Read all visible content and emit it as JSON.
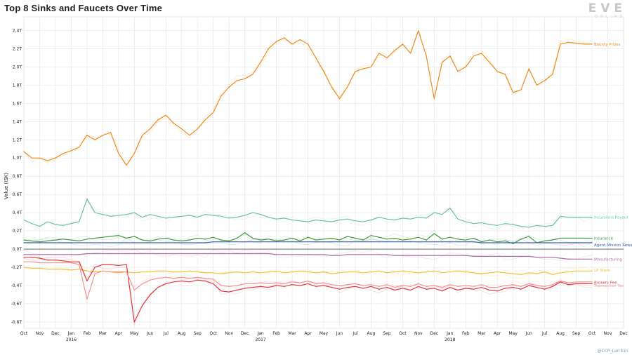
{
  "chart_data": {
    "type": "line",
    "title": "Top 8 Sinks and Faucets Over Time",
    "ylabel": "Value (ISK)",
    "xlabel": "",
    "ylim": [
      -0.87,
      2.55
    ],
    "yticks": [
      {
        "v": 2.4,
        "label": "2.4T"
      },
      {
        "v": 2.2,
        "label": "2.2T"
      },
      {
        "v": 2.0,
        "label": "2.0T"
      },
      {
        "v": 1.8,
        "label": "1.8T"
      },
      {
        "v": 1.6,
        "label": "1.6T"
      },
      {
        "v": 1.4,
        "label": "1.4T"
      },
      {
        "v": 1.2,
        "label": "1.2T"
      },
      {
        "v": 1.0,
        "label": "1.0T"
      },
      {
        "v": 0.8,
        "label": "0.8T"
      },
      {
        "v": 0.6,
        "label": "0.6T"
      },
      {
        "v": 0.4,
        "label": "0.4T"
      },
      {
        "v": 0.2,
        "label": "0.2T"
      },
      {
        "v": 0.0,
        "label": "0.0T"
      },
      {
        "v": -0.2,
        "label": "-0.2T"
      },
      {
        "v": -0.4,
        "label": "-0.4T"
      },
      {
        "v": -0.6,
        "label": "-0.6T"
      },
      {
        "v": -0.8,
        "label": "-0.8T"
      }
    ],
    "xticks": [
      "Oct",
      "Nov",
      "Dec",
      "Jan",
      "Feb",
      "Mar",
      "Apr",
      "May",
      "Jun",
      "Jul",
      "Aug",
      "Sep",
      "Oct",
      "Nov",
      "Dec",
      "Jan",
      "Feb",
      "Mar",
      "Apr",
      "May",
      "Jun",
      "Jul",
      "Aug",
      "Sep",
      "Oct",
      "Nov",
      "Dec",
      "Jan",
      "Feb",
      "Mar",
      "Apr",
      "May",
      "Jun",
      "Jul",
      "Aug",
      "Sep",
      "Oct",
      "Nov",
      "Dec"
    ],
    "year_labels": [
      {
        "month_index": 3,
        "label": "2016"
      },
      {
        "month_index": 15,
        "label": "2017"
      },
      {
        "month_index": 27,
        "label": "2018"
      }
    ],
    "grid": true,
    "x_months": [
      0,
      0.5,
      1,
      1.5,
      2,
      2.5,
      3,
      3.5,
      4,
      4.5,
      5,
      5.5,
      6,
      6.5,
      7,
      7.5,
      8,
      8.5,
      9,
      9.5,
      10,
      10.5,
      11,
      11.5,
      12,
      12.5,
      13,
      13.5,
      14,
      14.5,
      15,
      15.5,
      16,
      16.5,
      17,
      17.5,
      18,
      18.5,
      19,
      19.5,
      20,
      20.5,
      21,
      21.5,
      22,
      22.5,
      23,
      23.5,
      24,
      24.5,
      25,
      25.5,
      26,
      26.5,
      27,
      27.5,
      28,
      28.5,
      29,
      29.5,
      30,
      30.5,
      31,
      31.5,
      32,
      32.5,
      33,
      33.5,
      34,
      34.5,
      35,
      35.5,
      36
    ],
    "series": [
      {
        "name": "Bounty Prizes",
        "color": "#f08a1c",
        "values": [
          1.07,
          1.0,
          1.0,
          0.97,
          1.0,
          1.05,
          1.08,
          1.12,
          1.25,
          1.2,
          1.25,
          1.28,
          1.05,
          0.92,
          1.05,
          1.25,
          1.32,
          1.42,
          1.47,
          1.38,
          1.32,
          1.25,
          1.32,
          1.42,
          1.5,
          1.68,
          1.78,
          1.85,
          1.87,
          1.92,
          2.05,
          2.2,
          2.28,
          2.32,
          2.25,
          2.3,
          2.25,
          2.1,
          1.95,
          1.78,
          1.65,
          1.78,
          1.95,
          1.98,
          2.0,
          2.15,
          2.1,
          2.18,
          2.25,
          2.15,
          2.4,
          2.12,
          1.65,
          2.05,
          2.12,
          1.95,
          2.0,
          2.12,
          2.15,
          2.05,
          1.95,
          1.92,
          1.72,
          1.75,
          1.98,
          1.8,
          1.85,
          1.92,
          2.25,
          2.27,
          2.26,
          2.25,
          2.25
        ]
      },
      {
        "name": "Incursions Payout",
        "color": "#6bbfb3",
        "values": [
          0.32,
          0.28,
          0.25,
          0.3,
          0.27,
          0.26,
          0.28,
          0.3,
          0.55,
          0.4,
          0.38,
          0.36,
          0.37,
          0.38,
          0.4,
          0.35,
          0.38,
          0.36,
          0.34,
          0.35,
          0.36,
          0.37,
          0.35,
          0.38,
          0.37,
          0.36,
          0.34,
          0.35,
          0.37,
          0.4,
          0.38,
          0.35,
          0.33,
          0.34,
          0.32,
          0.31,
          0.3,
          0.32,
          0.31,
          0.3,
          0.32,
          0.33,
          0.31,
          0.3,
          0.32,
          0.35,
          0.33,
          0.32,
          0.34,
          0.33,
          0.35,
          0.34,
          0.4,
          0.38,
          0.45,
          0.33,
          0.3,
          0.28,
          0.29,
          0.27,
          0.26,
          0.28,
          0.27,
          0.25,
          0.24,
          0.26,
          0.25,
          0.26,
          0.36,
          0.35,
          0.35,
          0.35,
          0.35
        ]
      },
      {
        "name": "Insurance",
        "color": "#3f9e3f",
        "values": [
          0.1,
          0.09,
          0.08,
          0.09,
          0.1,
          0.11,
          0.1,
          0.09,
          0.11,
          0.12,
          0.13,
          0.14,
          0.15,
          0.12,
          0.14,
          0.1,
          0.09,
          0.11,
          0.12,
          0.1,
          0.09,
          0.1,
          0.12,
          0.11,
          0.13,
          0.1,
          0.09,
          0.12,
          0.18,
          0.12,
          0.1,
          0.11,
          0.09,
          0.1,
          0.12,
          0.09,
          0.13,
          0.1,
          0.11,
          0.12,
          0.1,
          0.14,
          0.12,
          0.1,
          0.15,
          0.13,
          0.11,
          0.12,
          0.1,
          0.11,
          0.13,
          0.1,
          0.17,
          0.11,
          0.13,
          0.11,
          0.1,
          0.12,
          0.08,
          0.1,
          0.08,
          0.09,
          0.06,
          0.11,
          0.14,
          0.07,
          0.09,
          0.1,
          0.12,
          0.12,
          0.12,
          0.12,
          0.12
        ]
      },
      {
        "name": "Agent Mission Rewards",
        "color": "#3a5ea8",
        "values": [
          0.07,
          0.07,
          0.07,
          0.07,
          0.07,
          0.07,
          0.07,
          0.07,
          0.07,
          0.07,
          0.07,
          0.07,
          0.07,
          0.07,
          0.07,
          0.07,
          0.07,
          0.07,
          0.07,
          0.07,
          0.07,
          0.07,
          0.07,
          0.07,
          0.08,
          0.08,
          0.08,
          0.08,
          0.08,
          0.08,
          0.08,
          0.08,
          0.08,
          0.08,
          0.08,
          0.08,
          0.08,
          0.08,
          0.08,
          0.08,
          0.08,
          0.08,
          0.08,
          0.08,
          0.08,
          0.08,
          0.08,
          0.08,
          0.08,
          0.08,
          0.08,
          0.08,
          0.08,
          0.08,
          0.08,
          0.08,
          0.08,
          0.08,
          0.07,
          0.07,
          0.07,
          0.07,
          0.07,
          0.07,
          0.07,
          0.07,
          0.07,
          0.07,
          0.07,
          0.07,
          0.07,
          0.07,
          0.07
        ]
      },
      {
        "name": "Manufacturing",
        "color": "#b06aa8",
        "values": [
          -0.06,
          -0.06,
          -0.06,
          -0.06,
          -0.06,
          -0.06,
          -0.06,
          -0.06,
          -0.05,
          -0.05,
          -0.05,
          -0.05,
          -0.05,
          -0.05,
          -0.05,
          -0.05,
          -0.05,
          -0.05,
          -0.05,
          -0.05,
          -0.05,
          -0.05,
          -0.05,
          -0.05,
          -0.05,
          -0.05,
          -0.05,
          -0.05,
          -0.05,
          -0.05,
          -0.05,
          -0.05,
          -0.06,
          -0.06,
          -0.06,
          -0.06,
          -0.06,
          -0.06,
          -0.06,
          -0.07,
          -0.07,
          -0.06,
          -0.06,
          -0.06,
          -0.06,
          -0.06,
          -0.06,
          -0.07,
          -0.07,
          -0.07,
          -0.07,
          -0.07,
          -0.07,
          -0.07,
          -0.07,
          -0.07,
          -0.07,
          -0.08,
          -0.08,
          -0.08,
          -0.08,
          -0.08,
          -0.08,
          -0.08,
          -0.08,
          -0.09,
          -0.09,
          -0.09,
          -0.1,
          -0.11,
          -0.11,
          -0.11,
          -0.11
        ]
      },
      {
        "name": "LP Store",
        "color": "#f0c23a",
        "values": [
          -0.2,
          -0.21,
          -0.21,
          -0.22,
          -0.22,
          -0.22,
          -0.23,
          -0.22,
          -0.24,
          -0.25,
          -0.24,
          -0.25,
          -0.26,
          -0.25,
          -0.26,
          -0.25,
          -0.25,
          -0.24,
          -0.24,
          -0.25,
          -0.25,
          -0.24,
          -0.25,
          -0.26,
          -0.26,
          -0.27,
          -0.26,
          -0.25,
          -0.26,
          -0.25,
          -0.26,
          -0.25,
          -0.24,
          -0.26,
          -0.25,
          -0.24,
          -0.25,
          -0.26,
          -0.25,
          -0.27,
          -0.26,
          -0.25,
          -0.25,
          -0.26,
          -0.25,
          -0.24,
          -0.26,
          -0.25,
          -0.24,
          -0.25,
          -0.26,
          -0.25,
          -0.24,
          -0.26,
          -0.25,
          -0.24,
          -0.25,
          -0.26,
          -0.27,
          -0.26,
          -0.25,
          -0.26,
          -0.27,
          -0.28,
          -0.26,
          -0.27,
          -0.25,
          -0.28,
          -0.26,
          -0.25,
          -0.24,
          -0.24,
          -0.24
        ]
      },
      {
        "name": "Brokers Fee",
        "color": "#e0393c",
        "values": [
          -0.09,
          -0.09,
          -0.1,
          -0.12,
          -0.12,
          -0.13,
          -0.14,
          -0.14,
          -0.35,
          -0.2,
          -0.17,
          -0.17,
          -0.18,
          -0.17,
          -0.8,
          -0.62,
          -0.5,
          -0.42,
          -0.38,
          -0.36,
          -0.35,
          -0.36,
          -0.34,
          -0.35,
          -0.38,
          -0.46,
          -0.47,
          -0.45,
          -0.43,
          -0.42,
          -0.41,
          -0.42,
          -0.4,
          -0.41,
          -0.39,
          -0.4,
          -0.38,
          -0.41,
          -0.4,
          -0.42,
          -0.44,
          -0.42,
          -0.41,
          -0.43,
          -0.41,
          -0.44,
          -0.42,
          -0.45,
          -0.43,
          -0.45,
          -0.41,
          -0.44,
          -0.43,
          -0.46,
          -0.42,
          -0.45,
          -0.43,
          -0.44,
          -0.42,
          -0.45,
          -0.46,
          -0.43,
          -0.42,
          -0.44,
          -0.4,
          -0.42,
          -0.44,
          -0.41,
          -0.36,
          -0.39,
          -0.38,
          -0.38,
          -0.38
        ]
      },
      {
        "name": "Transaction Tax",
        "color": "#f59393",
        "values": [
          -0.14,
          -0.14,
          -0.15,
          -0.15,
          -0.15,
          -0.15,
          -0.15,
          -0.17,
          -0.55,
          -0.27,
          -0.24,
          -0.25,
          -0.25,
          -0.25,
          -0.45,
          -0.38,
          -0.34,
          -0.32,
          -0.31,
          -0.32,
          -0.31,
          -0.32,
          -0.31,
          -0.32,
          -0.33,
          -0.4,
          -0.41,
          -0.4,
          -0.38,
          -0.38,
          -0.37,
          -0.38,
          -0.37,
          -0.38,
          -0.36,
          -0.37,
          -0.35,
          -0.38,
          -0.37,
          -0.39,
          -0.4,
          -0.39,
          -0.38,
          -0.4,
          -0.39,
          -0.41,
          -0.39,
          -0.42,
          -0.4,
          -0.41,
          -0.38,
          -0.41,
          -0.4,
          -0.42,
          -0.39,
          -0.41,
          -0.4,
          -0.41,
          -0.39,
          -0.42,
          -0.42,
          -0.4,
          -0.39,
          -0.41,
          -0.38,
          -0.4,
          -0.41,
          -0.39,
          -0.35,
          -0.37,
          -0.36,
          -0.36,
          -0.36
        ]
      }
    ]
  },
  "header": {
    "logo_text": "EVE",
    "logo_sub": "ONLINE"
  },
  "footer": {
    "credit": "@CCP_Larrikin"
  }
}
